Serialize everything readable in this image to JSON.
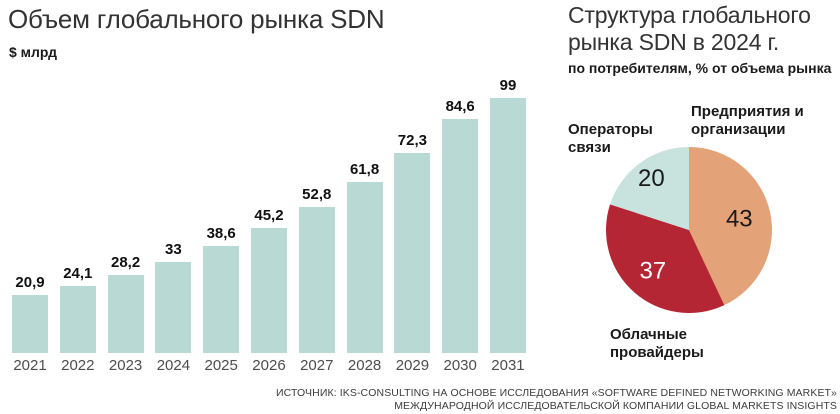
{
  "left_chart": {
    "title": "Объем глобального рынка SDN",
    "unit_label": "$ млрд"
  },
  "right_chart": {
    "title_line1": "Структура глобального",
    "title_line2": "рынка SDN в 2024 г.",
    "subtitle": "по потребителям, % от объема рынка"
  },
  "footer": {
    "line1": "ИСТОЧНИК: IKS-CONSULTING НА ОСНОВЕ ИССЛЕДОВАНИЯ «SOFTWARE DEFINED NETWORKING MARKET»",
    "line2": "МЕЖДУНАРОДНОЙ ИССЛЕДОВАТЕЛЬСКОЙ КОМПАНИИ GLOBAL MARKETS INSIGHTS"
  },
  "colors": {
    "bar_fill": "#b9dad4",
    "pie_enterprise": "#e3a277",
    "pie_cloud": "#b52635",
    "pie_telecom": "#c8e2dd",
    "title_text": "#333333",
    "year_text": "#4d4d4d"
  },
  "chart_data": [
    {
      "type": "bar",
      "title": "Объем глобального рынка SDN",
      "ylabel": "$ млрд",
      "categories": [
        "2021",
        "2022",
        "2023",
        "2024",
        "2025",
        "2026",
        "2027",
        "2028",
        "2029",
        "2030",
        "2031"
      ],
      "values": [
        20.9,
        24.1,
        28.2,
        33,
        38.6,
        45.2,
        52.8,
        61.8,
        72.3,
        84.6,
        99
      ],
      "value_labels": [
        "20,9",
        "24,1",
        "28,2",
        "33",
        "38,6",
        "45,2",
        "52,8",
        "61,8",
        "72,3",
        "84,6",
        "99"
      ],
      "bar_color": "#b9dad4",
      "ylim": [
        0,
        100
      ],
      "grid": false,
      "legend": false
    },
    {
      "type": "pie",
      "title": "Структура глобального рынка SDN в 2024 г.",
      "subtitle": "по потребителям, % от объема рынка",
      "start_angle_deg": -90,
      "direction": "clockwise",
      "slices": [
        {
          "label": "Предприятия и организации",
          "value": 43,
          "color": "#e3a277",
          "value_color": "#1a1a1a"
        },
        {
          "label": "Облачные провайдеры",
          "value": 37,
          "color": "#b52635",
          "value_color": "#ffffff"
        },
        {
          "label": "Операторы связи",
          "value": 20,
          "color": "#c8e2dd",
          "value_color": "#1a1a1a"
        }
      ]
    }
  ]
}
